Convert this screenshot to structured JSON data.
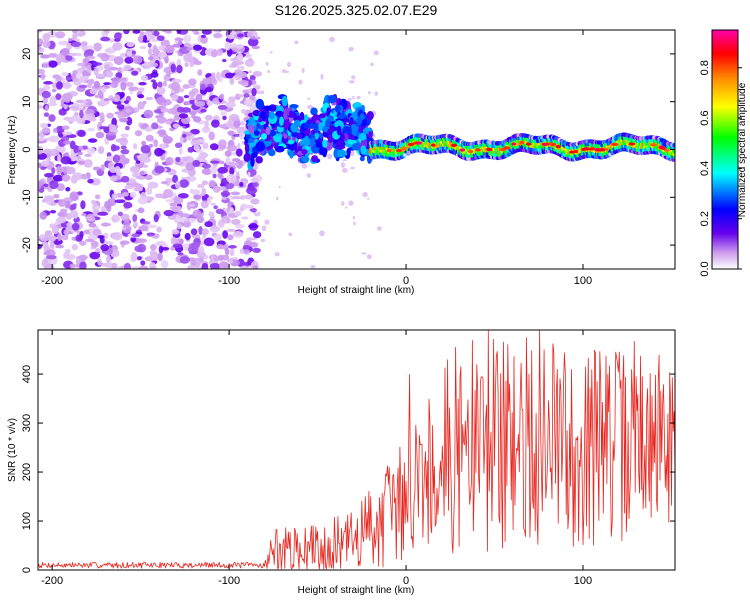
{
  "title": "S126.2025.325.02.07.E29",
  "chart_data": [
    {
      "type": "heatmap",
      "xlabel": "Height of straight line (km)",
      "ylabel": "Frequency (Hz)",
      "xlim": [
        -208,
        152
      ],
      "ylim": [
        -25,
        25
      ],
      "xticks": [
        -200,
        -100,
        0,
        100
      ],
      "xtick_labels": [
        "-200",
        "-100",
        "0",
        "100"
      ],
      "yticks": [
        -20,
        -10,
        0,
        10,
        20
      ],
      "ytick_labels": [
        "-20",
        "-10",
        "0",
        "10",
        "20"
      ],
      "colorbar": {
        "label": "Normalized spectral amplitude",
        "range": [
          0,
          0.95
        ],
        "ticks": [
          0,
          0.2,
          0.4,
          0.6,
          0.8
        ],
        "tick_labels": [
          "0.0",
          "0.2",
          "0.4",
          "0.6",
          "0.8"
        ],
        "colors": [
          "#ffffff",
          "#cc99ee",
          "#6600ee",
          "#0000ff",
          "#00ffff",
          "#00ff00",
          "#ffff00",
          "#ff8800",
          "#ff0000",
          "#ff00aa"
        ]
      },
      "regions": [
        {
          "x_range": [
            -208,
            -90
          ],
          "freq_range": [
            -25,
            25
          ],
          "amplitude": "0.05-0.2",
          "description": "broadband noise"
        },
        {
          "x_range": [
            -90,
            -20
          ],
          "freq_center": 2,
          "freq_width": 10,
          "amplitude": "0.1-0.4"
        },
        {
          "x_range": [
            -20,
            152
          ],
          "freq_center": 0.5,
          "freq_width": 3,
          "amplitude": "0.4-0.95"
        }
      ]
    },
    {
      "type": "line",
      "xlabel": "Height of straight line (km)",
      "ylabel": "SNR (10 * v/v)",
      "xlim": [
        -208,
        152
      ],
      "ylim": [
        0,
        490
      ],
      "xticks": [
        -200,
        -100,
        0,
        100
      ],
      "xtick_labels": [
        "-200",
        "-100",
        "0",
        "100"
      ],
      "yticks": [
        0,
        100,
        200,
        300,
        400
      ],
      "ytick_labels": [
        "0",
        "100",
        "200",
        "300",
        "400"
      ],
      "color": "#e8261f",
      "sample_spacing_km": 0.5,
      "envelope": [
        {
          "x": -208,
          "mean": 10,
          "spread": 6
        },
        {
          "x": -80,
          "mean": 10,
          "spread": 6
        },
        {
          "x": -75,
          "mean": 40,
          "spread": 50
        },
        {
          "x": -60,
          "mean": 40,
          "spread": 45
        },
        {
          "x": -30,
          "mean": 60,
          "spread": 60
        },
        {
          "x": -20,
          "mean": 90,
          "spread": 90
        },
        {
          "x": -5,
          "mean": 130,
          "spread": 120
        },
        {
          "x": 10,
          "mean": 200,
          "spread": 180
        },
        {
          "x": 30,
          "mean": 250,
          "spread": 220
        },
        {
          "x": 70,
          "mean": 260,
          "spread": 220
        },
        {
          "x": 110,
          "mean": 250,
          "spread": 210
        },
        {
          "x": 152,
          "mean": 270,
          "spread": 170
        }
      ]
    }
  ]
}
